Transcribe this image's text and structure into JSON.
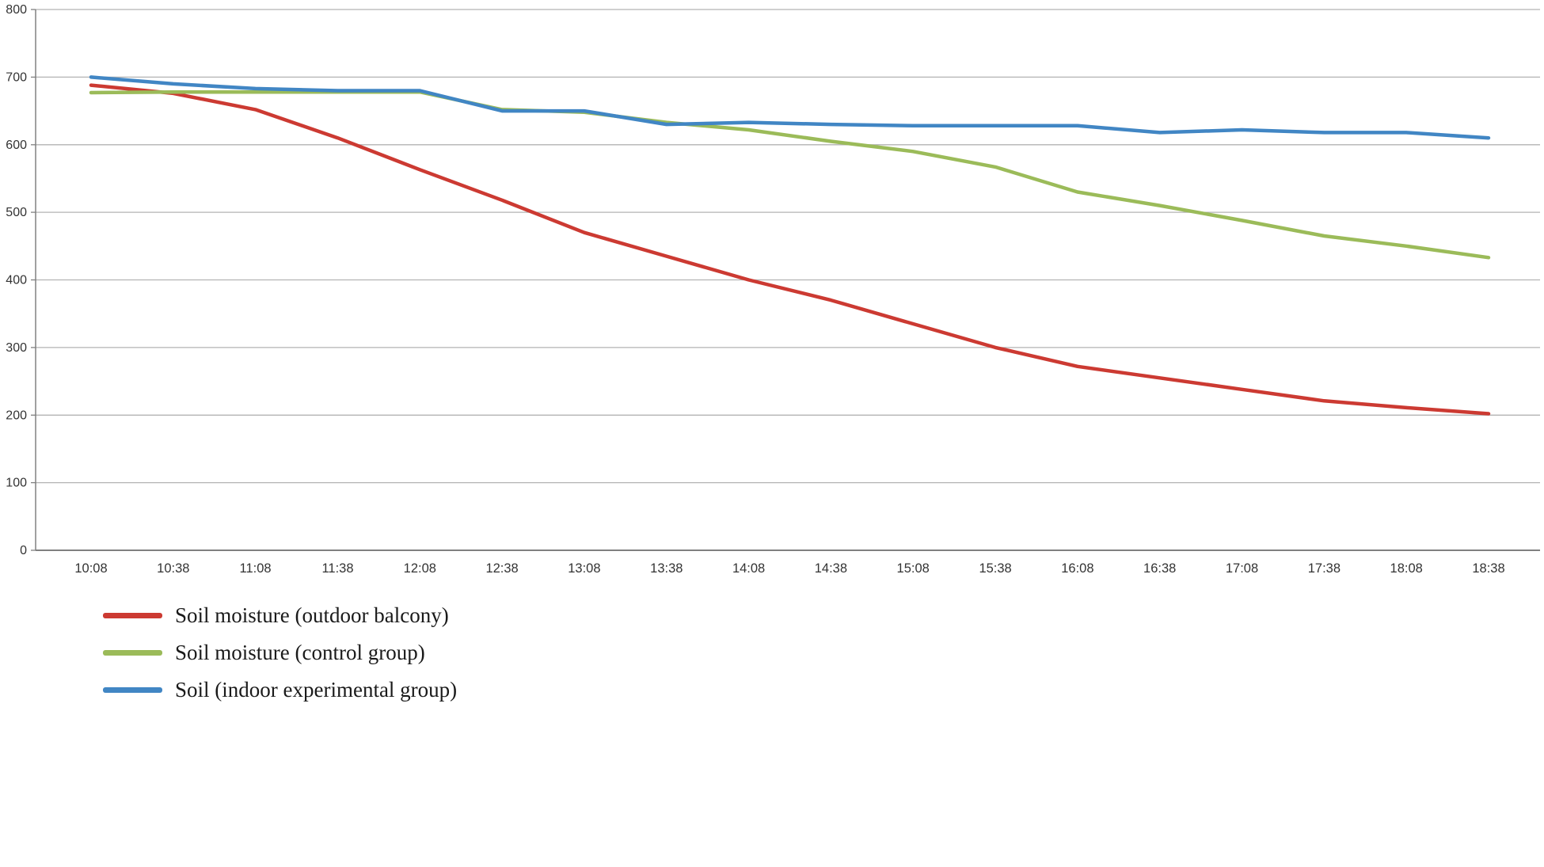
{
  "chart_data": {
    "type": "line",
    "title": "",
    "xlabel": "",
    "ylabel": "",
    "x": [
      "10:08",
      "10:38",
      "11:08",
      "11:38",
      "12:08",
      "12:38",
      "13:08",
      "13:38",
      "14:08",
      "14:38",
      "15:08",
      "15:38",
      "16:08",
      "16:38",
      "17:08",
      "17:38",
      "18:08",
      "18:38"
    ],
    "series": [
      {
        "name": "Soil moisture (outdoor balcony)",
        "color": "#cc3a32",
        "values": [
          688,
          676,
          652,
          610,
          563,
          518,
          470,
          435,
          400,
          370,
          335,
          300,
          272,
          255,
          238,
          221,
          211,
          202
        ]
      },
      {
        "name": "Soil moisture (control group)",
        "color": "#9bbb59",
        "values": [
          677,
          678,
          678,
          678,
          678,
          652,
          648,
          633,
          622,
          605,
          590,
          567,
          530,
          510,
          488,
          465,
          450,
          433
        ]
      },
      {
        "name": "Soil (indoor experimental group)",
        "color": "#4186c4",
        "values": [
          700,
          690,
          683,
          680,
          680,
          650,
          650,
          630,
          633,
          630,
          628,
          628,
          628,
          618,
          622,
          618,
          618,
          610
        ]
      }
    ],
    "ylim": [
      0,
      800
    ],
    "ytick_step": 100,
    "grid": true,
    "legend_position": "bottom-left"
  }
}
